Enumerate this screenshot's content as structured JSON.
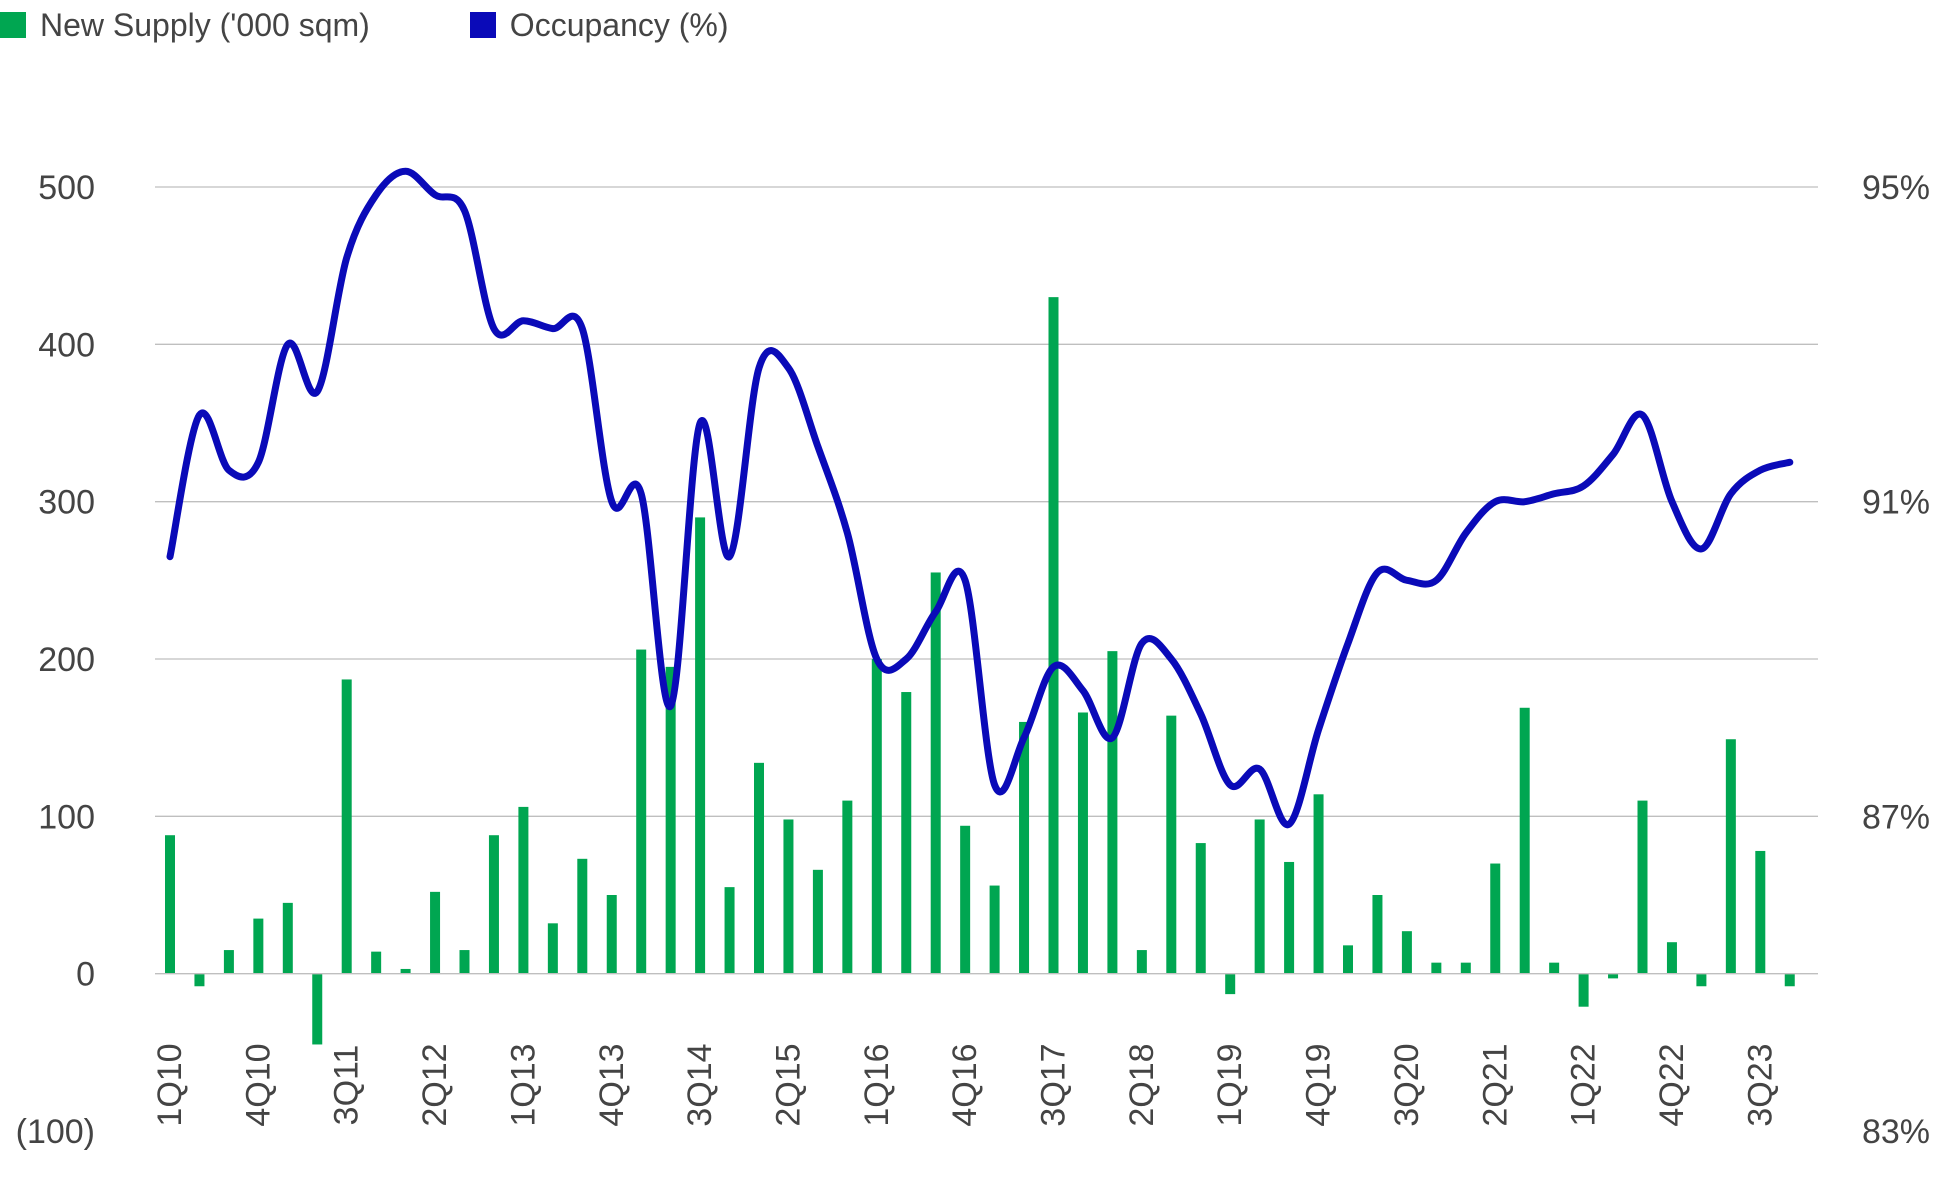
{
  "legend": {
    "supply_label": "New Supply ('000 sqm)",
    "occupancy_label": "Occupancy (%)"
  },
  "colors": {
    "supply": "#00A651",
    "occupancy": "#0A0AB8",
    "grid": "#BFBFBF",
    "text": "#444444"
  },
  "chart_data": {
    "type": "bar",
    "title": "",
    "xlabel": "",
    "ylabel": "",
    "ylim": [
      -100,
      500
    ],
    "y2lim": [
      83,
      95
    ],
    "yticks": [
      "(100)",
      "0",
      "100",
      "200",
      "300",
      "400",
      "500"
    ],
    "y2ticks": [
      "83%",
      "87%",
      "91%",
      "95%"
    ],
    "y2tick_values": [
      83,
      87,
      91,
      95
    ],
    "grid": true,
    "legend_position": "top-left",
    "categories": [
      "1Q10",
      "2Q10",
      "3Q10",
      "4Q10",
      "1Q11",
      "2Q11",
      "3Q11",
      "4Q11",
      "1Q12",
      "2Q12",
      "3Q12",
      "4Q12",
      "1Q13",
      "2Q13",
      "3Q13",
      "4Q13",
      "1Q14",
      "2Q14",
      "3Q14",
      "4Q14",
      "1Q15",
      "2Q15",
      "3Q15",
      "4Q15",
      "1Q16",
      "2Q16",
      "3Q16",
      "4Q16",
      "1Q17",
      "2Q17",
      "3Q17",
      "4Q17",
      "1Q18",
      "2Q18",
      "3Q18",
      "4Q18",
      "1Q19",
      "2Q19",
      "3Q19",
      "4Q19",
      "1Q20",
      "2Q20",
      "3Q20",
      "4Q20",
      "1Q21",
      "2Q21",
      "3Q21",
      "4Q21",
      "1Q22",
      "2Q22",
      "3Q22",
      "4Q22",
      "1Q23",
      "2Q23",
      "3Q23",
      "4Q23"
    ],
    "xtick_labels": [
      "1Q10",
      "4Q10",
      "3Q11",
      "2Q12",
      "1Q13",
      "4Q13",
      "3Q14",
      "2Q15",
      "1Q16",
      "4Q16",
      "3Q17",
      "2Q18",
      "1Q19",
      "4Q19",
      "3Q20",
      "2Q21",
      "1Q22",
      "4Q22",
      "3Q23"
    ],
    "series": [
      {
        "name": "New Supply ('000 sqm)",
        "type": "bar",
        "axis": "left",
        "values": [
          88,
          -8,
          15,
          35,
          45,
          -45,
          187,
          14,
          3,
          52,
          15,
          88,
          106,
          32,
          73,
          50,
          206,
          195,
          290,
          55,
          134,
          98,
          66,
          110,
          200,
          179,
          255,
          94,
          56,
          160,
          430,
          166,
          205,
          15,
          164,
          83,
          -13,
          98,
          71,
          114,
          18,
          50,
          27,
          7,
          7,
          70,
          169,
          7,
          -21,
          -3,
          110,
          20,
          -8,
          149,
          78,
          -8
        ]
      },
      {
        "name": "Occupancy (%)",
        "type": "line",
        "axis": "right",
        "values": [
          90.3,
          92.1,
          91.4,
          91.5,
          93.0,
          92.4,
          94.1,
          94.9,
          95.2,
          94.9,
          94.7,
          93.2,
          93.3,
          93.2,
          93.2,
          91.0,
          91.1,
          88.4,
          92.0,
          90.3,
          92.7,
          92.7,
          91.7,
          90.6,
          89.0,
          89.0,
          89.6,
          90.0,
          87.4,
          88.0,
          88.9,
          88.6,
          88.0,
          89.2,
          89.0,
          88.3,
          87.4,
          87.6,
          86.9,
          88.1,
          89.2,
          90.1,
          90.0,
          90.0,
          90.6,
          91.0,
          91.0,
          91.1,
          91.2,
          91.6,
          92.1,
          91.0,
          90.4,
          91.1,
          91.4,
          91.5
        ]
      }
    ]
  }
}
